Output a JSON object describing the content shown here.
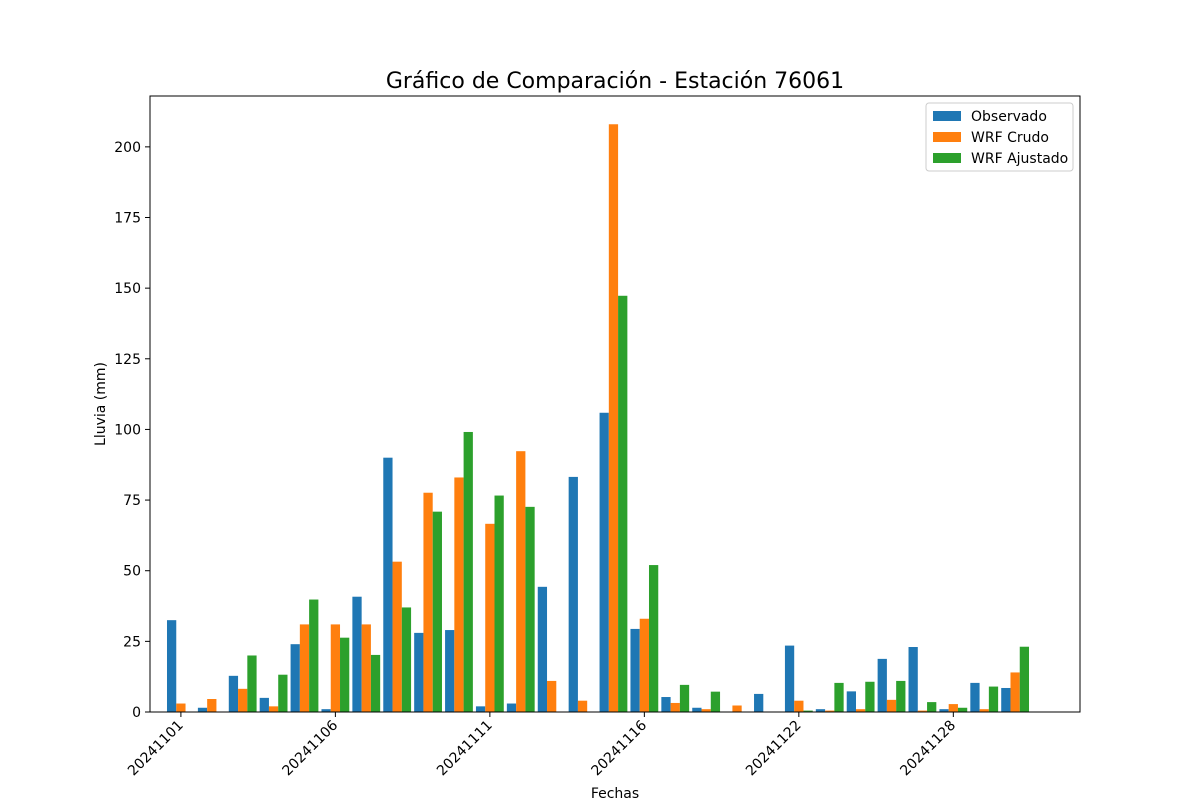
{
  "chart_data": {
    "type": "bar",
    "title": "Gráfico de Comparación - Estación 76061",
    "xlabel": "Fechas",
    "ylabel": "Lluvia (mm)",
    "ylim": [
      0,
      218
    ],
    "yticks": [
      0,
      25,
      50,
      75,
      100,
      125,
      150,
      175,
      200
    ],
    "xticks": [
      {
        "label": "20241101",
        "index": 0
      },
      {
        "label": "20241106",
        "index": 5
      },
      {
        "label": "20241111",
        "index": 10
      },
      {
        "label": "20241116",
        "index": 15
      },
      {
        "label": "20241122",
        "index": 20
      },
      {
        "label": "20241128",
        "index": 25
      }
    ],
    "num_categories": 29,
    "legend_position": "top-right",
    "grid": false,
    "series": [
      {
        "name": "Observado",
        "color": "#1f77b4",
        "values": [
          32.5,
          1.5,
          12.8,
          5.0,
          24.0,
          1.0,
          40.8,
          90.0,
          28.0,
          29.0,
          2.0,
          3.0,
          44.3,
          83.2,
          105.9,
          29.4,
          5.3,
          1.5,
          0.0,
          6.4,
          23.5,
          1.0,
          7.3,
          18.8,
          23.0,
          1.0,
          10.3,
          8.5,
          0.0
        ]
      },
      {
        "name": "WRF Crudo",
        "color": "#ff7f0e",
        "values": [
          3.0,
          4.6,
          8.2,
          2.0,
          31.0,
          31.0,
          31.0,
          53.2,
          77.6,
          83.0,
          66.6,
          92.3,
          11.0,
          4.0,
          208.0,
          33.0,
          3.2,
          1.0,
          2.3,
          0.0,
          4.0,
          0.5,
          1.0,
          4.3,
          0.5,
          2.8,
          1.0,
          14.0,
          0.0
        ]
      },
      {
        "name": "WRF Ajustado",
        "color": "#2ca02c",
        "values": [
          0.0,
          0.0,
          20.0,
          13.2,
          39.8,
          26.3,
          20.2,
          37.0,
          70.9,
          99.1,
          76.6,
          72.6,
          0.0,
          0.0,
          147.3,
          52.0,
          9.6,
          7.2,
          0.0,
          0.0,
          0.5,
          10.3,
          10.7,
          11.0,
          3.5,
          1.5,
          9.0,
          23.1,
          0.0
        ]
      }
    ]
  }
}
